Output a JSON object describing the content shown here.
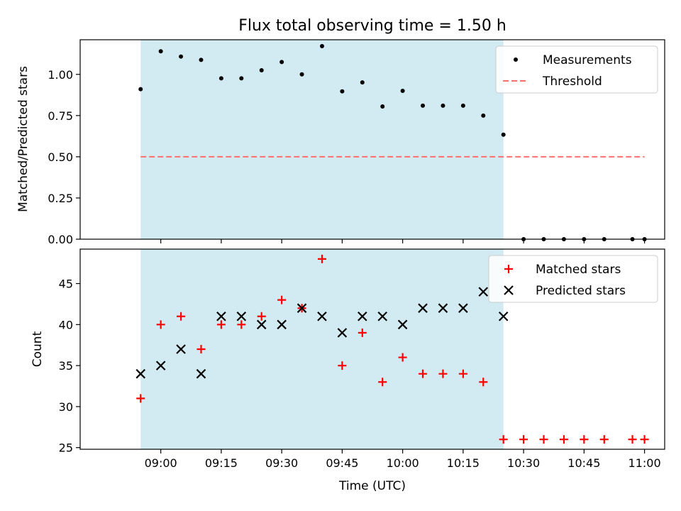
{
  "figure": {
    "title": "Flux total observing time = 1.50 h"
  },
  "chart_data": [
    {
      "type": "scatter",
      "ylabel": "Matched/Predicted stars",
      "ylim": [
        0.0,
        1.21
      ],
      "yticks": [
        0.0,
        0.25,
        0.5,
        0.75,
        1.0
      ],
      "ytick_labels": [
        "0.00",
        "0.25",
        "0.50",
        "0.75",
        "1.00"
      ],
      "x_time_range": [
        "08:40",
        "11:05"
      ],
      "shaded_interval": {
        "start": "08:55",
        "end": "10:25",
        "color": "#add8e6"
      },
      "legend_placement": "top-right",
      "series": [
        {
          "name": "Measurements",
          "kind": "points",
          "color": "#000000",
          "x": [
            "08:55",
            "09:00",
            "09:05",
            "09:10",
            "09:15",
            "09:20",
            "09:25",
            "09:30",
            "09:35",
            "09:40",
            "09:45",
            "09:50",
            "09:55",
            "10:00",
            "10:05",
            "10:10",
            "10:15",
            "10:20",
            "10:25",
            "10:30",
            "10:35",
            "10:40",
            "10:45",
            "10:50",
            "10:57",
            "11:00"
          ],
          "y": [
            0.91,
            1.14,
            1.108,
            1.088,
            0.976,
            0.976,
            1.025,
            1.075,
            1.0,
            1.171,
            0.897,
            0.951,
            0.805,
            0.9,
            0.81,
            0.81,
            0.81,
            0.75,
            0.634,
            0,
            0,
            0,
            0,
            0,
            0,
            0
          ]
        },
        {
          "name": "Threshold",
          "kind": "dashed-line",
          "color": "#ff7070",
          "x": [
            "08:55",
            "11:00"
          ],
          "y": [
            0.5,
            0.5
          ]
        }
      ]
    },
    {
      "type": "scatter",
      "xlabel": "Time (UTC)",
      "ylabel": "Count",
      "ylim": [
        24.8,
        49.2
      ],
      "yticks": [
        25,
        30,
        35,
        40,
        45
      ],
      "ytick_labels": [
        "25",
        "30",
        "35",
        "40",
        "45"
      ],
      "xticks": [
        "09:00",
        "09:15",
        "09:30",
        "09:45",
        "10:00",
        "10:15",
        "10:30",
        "10:45",
        "11:00"
      ],
      "xtick_labels": [
        "09:00",
        "09:15",
        "09:30",
        "09:45",
        "10:00",
        "10:15",
        "10:30",
        "10:45",
        "11:00"
      ],
      "x_time_range": [
        "08:40",
        "11:05"
      ],
      "shaded_interval": {
        "start": "08:55",
        "end": "10:25",
        "color": "#add8e6"
      },
      "legend_placement": "top-right",
      "series": [
        {
          "name": "Matched stars",
          "kind": "plus",
          "color": "#ff0000",
          "x": [
            "08:55",
            "09:00",
            "09:05",
            "09:10",
            "09:15",
            "09:20",
            "09:25",
            "09:30",
            "09:35",
            "09:40",
            "09:45",
            "09:50",
            "09:55",
            "10:00",
            "10:05",
            "10:10",
            "10:15",
            "10:20",
            "10:25",
            "10:30",
            "10:35",
            "10:40",
            "10:45",
            "10:50",
            "10:57",
            "11:00"
          ],
          "y": [
            31,
            40,
            41,
            37,
            40,
            40,
            41,
            43,
            42,
            48,
            35,
            39,
            33,
            36,
            34,
            34,
            34,
            33,
            26,
            26,
            26,
            26,
            26,
            26,
            26,
            26
          ]
        },
        {
          "name": "Predicted stars",
          "kind": "x",
          "color": "#000000",
          "x": [
            "08:55",
            "09:00",
            "09:05",
            "09:10",
            "09:15",
            "09:20",
            "09:25",
            "09:30",
            "09:35",
            "09:40",
            "09:45",
            "09:50",
            "09:55",
            "10:00",
            "10:05",
            "10:10",
            "10:15",
            "10:20",
            "10:25"
          ],
          "y": [
            34,
            35,
            37,
            34,
            41,
            41,
            40,
            40,
            42,
            41,
            39,
            41,
            41,
            40,
            42,
            42,
            42,
            44,
            41
          ]
        }
      ]
    }
  ]
}
